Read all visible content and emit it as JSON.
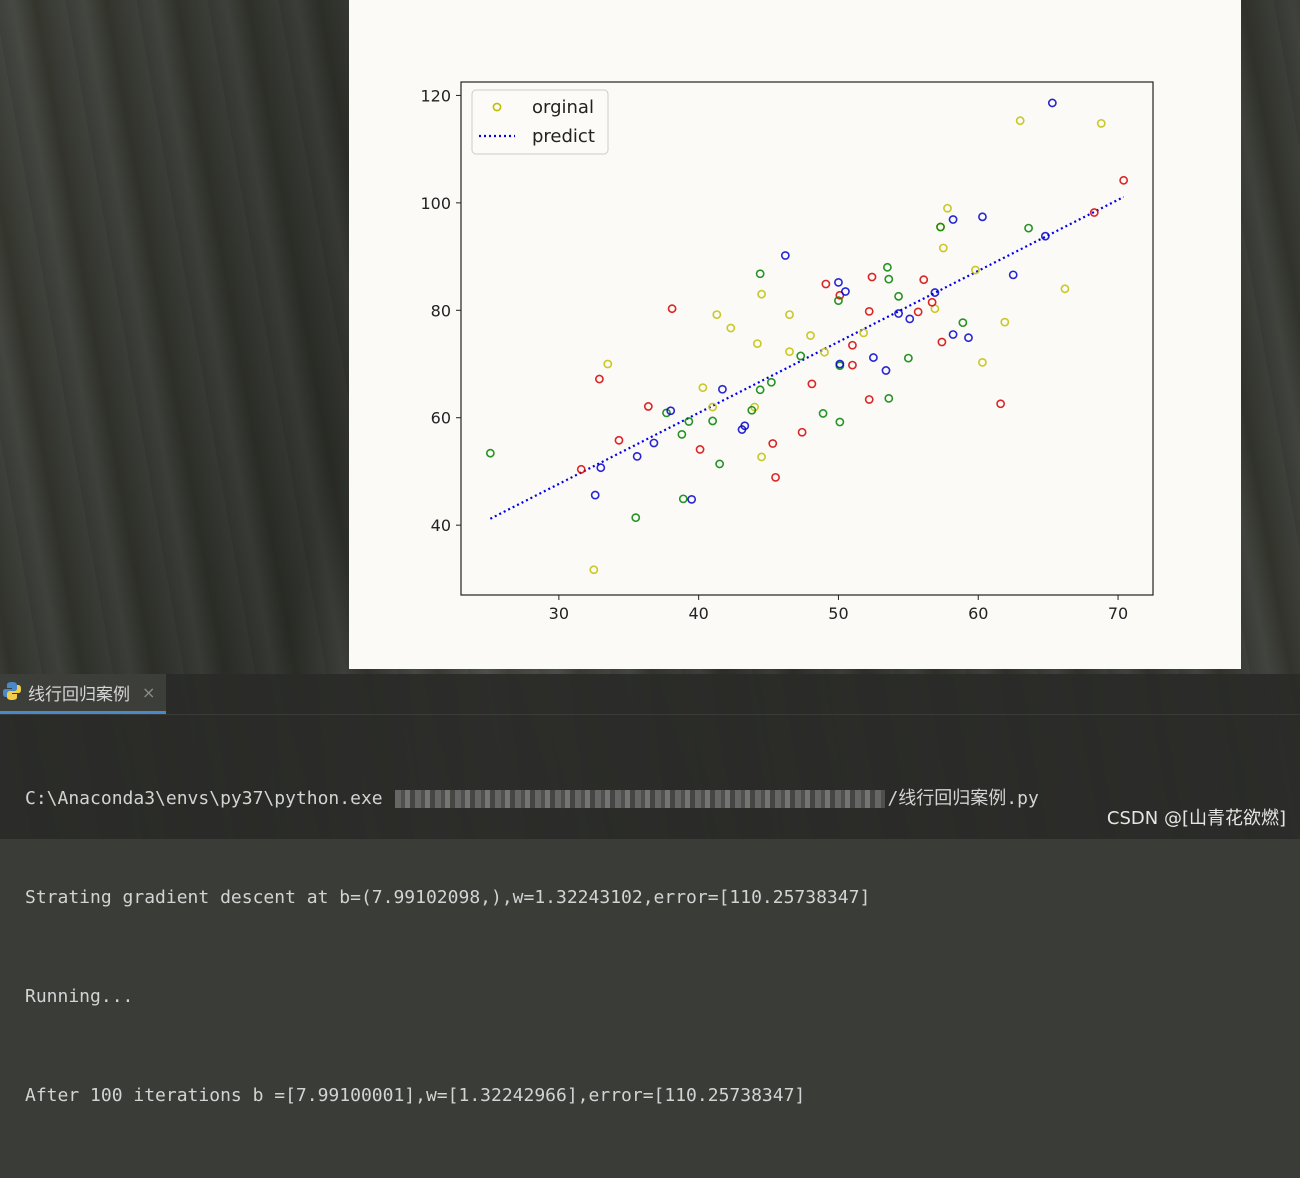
{
  "run_tab": {
    "label": "线行回归案例",
    "close_glyph": "×",
    "icon": "python-icon"
  },
  "console": {
    "line1_prefix": "C:\\Anaconda3\\envs\\py37\\python.exe ",
    "line1_suffix": "/线行回归案例.py",
    "line2": "Strating gradient descent at b=(7.99102098,),w=1.32243102,error=[110.25738347]",
    "line3": "Running...",
    "line4": "After 100 iterations b =[7.99100001],w=[1.32242966],error=[110.25738347]"
  },
  "watermark": "CSDN @[山青花欲燃]",
  "chart_data": {
    "type": "scatter",
    "xticks": [
      "30",
      "40",
      "50",
      "60",
      "70"
    ],
    "yticks": [
      "40",
      "60",
      "80",
      "100",
      "120"
    ],
    "xlim": [
      23,
      72.5
    ],
    "ylim": [
      27,
      122.5
    ],
    "legend": {
      "placement": "top-left",
      "entries": [
        "orginal",
        "predict"
      ]
    },
    "series": [
      {
        "name": "orginal",
        "color": "#bfbf00",
        "points": [
          [
            32.5,
            31.7
          ],
          [
            33.5,
            70
          ],
          [
            40.3,
            65.6
          ],
          [
            41.3,
            79.2
          ],
          [
            42.3,
            76.7
          ],
          [
            44.2,
            73.8
          ],
          [
            44.5,
            83
          ],
          [
            44.5,
            52.7
          ],
          [
            46.5,
            79.2
          ],
          [
            46.5,
            72.3
          ],
          [
            48,
            75.3
          ],
          [
            49,
            72.2
          ],
          [
            44,
            62
          ],
          [
            41,
            62
          ],
          [
            51.8,
            75.8
          ],
          [
            56.9,
            80.3
          ],
          [
            57.5,
            91.6
          ],
          [
            57.8,
            99
          ],
          [
            57.3,
            95.5
          ],
          [
            59.8,
            87.5
          ],
          [
            60.3,
            70.3
          ],
          [
            61.9,
            77.8
          ],
          [
            63,
            115.3
          ],
          [
            66.2,
            84
          ],
          [
            68.8,
            114.8
          ]
        ]
      },
      {
        "name": "orginal",
        "color": "#d40000",
        "points": [
          [
            31.6,
            50.4
          ],
          [
            32.9,
            67.2
          ],
          [
            34.3,
            55.8
          ],
          [
            36.4,
            62.1
          ],
          [
            38.1,
            80.3
          ],
          [
            40.1,
            54.1
          ],
          [
            45.3,
            55.2
          ],
          [
            45.5,
            48.9
          ],
          [
            47.4,
            57.3
          ],
          [
            48.1,
            66.3
          ],
          [
            49.1,
            84.9
          ],
          [
            50.1,
            82.8
          ],
          [
            51,
            69.8
          ],
          [
            51,
            73.5
          ],
          [
            52.2,
            63.4
          ],
          [
            52.2,
            79.8
          ],
          [
            52.4,
            86.2
          ],
          [
            55.7,
            79.7
          ],
          [
            56.1,
            85.7
          ],
          [
            56.7,
            81.5
          ],
          [
            57.4,
            74.1
          ],
          [
            61.6,
            62.6
          ],
          [
            68.3,
            98.2
          ],
          [
            70.4,
            104.2
          ]
        ]
      },
      {
        "name": "orginal",
        "color": "#008000",
        "points": [
          [
            25.1,
            53.4
          ],
          [
            35.5,
            41.4
          ],
          [
            37.7,
            60.9
          ],
          [
            38.8,
            56.9
          ],
          [
            38.9,
            44.9
          ],
          [
            39.3,
            59.3
          ],
          [
            41,
            59.4
          ],
          [
            41.5,
            51.4
          ],
          [
            43.8,
            61.4
          ],
          [
            44.4,
            65.2
          ],
          [
            44.4,
            86.8
          ],
          [
            45.2,
            66.6
          ],
          [
            47.3,
            71.5
          ],
          [
            48.9,
            60.8
          ],
          [
            50,
            81.8
          ],
          [
            50.1,
            59.2
          ],
          [
            50.1,
            69.7
          ],
          [
            53.5,
            88
          ],
          [
            53.6,
            63.6
          ],
          [
            53.6,
            85.8
          ],
          [
            54.3,
            82.6
          ],
          [
            55,
            71.1
          ],
          [
            57.3,
            95.5
          ],
          [
            58.9,
            77.7
          ],
          [
            63.6,
            95.3
          ]
        ]
      },
      {
        "name": "orginal",
        "color": "#0000cc",
        "points": [
          [
            32.6,
            45.6
          ],
          [
            33,
            50.7
          ],
          [
            35.6,
            52.8
          ],
          [
            36.8,
            55.3
          ],
          [
            38,
            61.3
          ],
          [
            39.5,
            44.8
          ],
          [
            41.7,
            65.3
          ],
          [
            43.1,
            57.8
          ],
          [
            43.3,
            58.5
          ],
          [
            46.2,
            90.2
          ],
          [
            50,
            85.2
          ],
          [
            50.1,
            70
          ],
          [
            50.5,
            83.5
          ],
          [
            52.5,
            71.2
          ],
          [
            53.4,
            68.8
          ],
          [
            54.3,
            79.4
          ],
          [
            55.1,
            78.4
          ],
          [
            56.9,
            83.3
          ],
          [
            58.2,
            75.5
          ],
          [
            58.2,
            96.9
          ],
          [
            59.3,
            74.9
          ],
          [
            60.3,
            97.4
          ],
          [
            62.5,
            86.6
          ],
          [
            64.8,
            93.8
          ],
          [
            65.3,
            118.6
          ]
        ]
      }
    ],
    "fit_line": {
      "name": "predict",
      "style": "dotted",
      "color": "#0000ee",
      "x": [
        25.1,
        70.4
      ],
      "y": [
        41.2,
        101.1
      ]
    }
  }
}
